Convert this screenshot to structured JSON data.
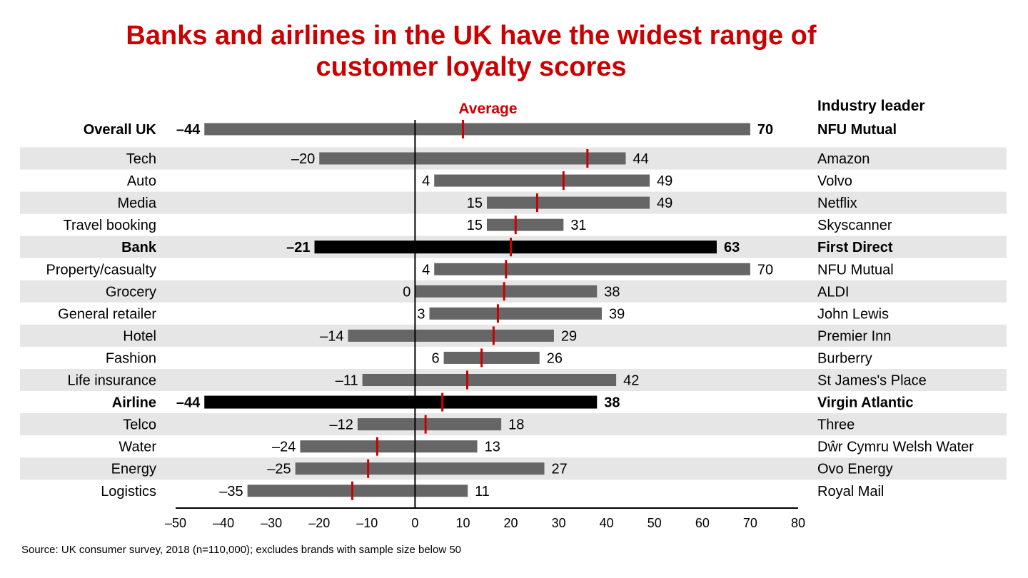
{
  "title_line1": "Banks and airlines in the UK have the widest range of",
  "title_line2": "customer loyalty scores",
  "source": "Source: UK consumer survey, 2018 (n=110,000); excludes brands with sample size below 50",
  "colors": {
    "title": "#cc0000",
    "bar": "#666666",
    "highlight_bar": "#000000",
    "average": "#cc0000",
    "row_band": "#e6e6e6"
  },
  "chart_data": {
    "type": "bar",
    "subtype": "floating-range",
    "title": "Banks and airlines in the UK have the widest range of customer loyalty scores",
    "xlabel": "",
    "ylabel": "",
    "xlim": [
      -50,
      80
    ],
    "x_ticks": [
      -50,
      -40,
      -30,
      -20,
      -10,
      0,
      10,
      20,
      30,
      40,
      50,
      60,
      70,
      80
    ],
    "x_tick_labels": [
      "–50",
      "–40",
      "–30",
      "–20",
      "–10",
      "0",
      "10",
      "20",
      "30",
      "40",
      "50",
      "60",
      "70",
      "80"
    ],
    "average_label": "Average",
    "leader_header": "Industry leader",
    "grid": false,
    "rows": [
      {
        "category": "Overall UK",
        "min": -44,
        "max": 70,
        "min_label": "–44",
        "max_label": "70",
        "average": 10,
        "leader": "NFU Mutual",
        "bold": true,
        "highlight": false,
        "band": false
      },
      {
        "category": "Tech",
        "min": -20,
        "max": 44,
        "min_label": "–20",
        "max_label": "44",
        "average": 36,
        "leader": "Amazon",
        "bold": false,
        "highlight": false,
        "band": true
      },
      {
        "category": "Auto",
        "min": 4,
        "max": 49,
        "min_label": "4",
        "max_label": "49",
        "average": 31,
        "leader": "Volvo",
        "bold": false,
        "highlight": false,
        "band": false
      },
      {
        "category": "Media",
        "min": 15,
        "max": 49,
        "min_label": "15",
        "max_label": "49",
        "average": 25.5,
        "leader": "Netflix",
        "bold": false,
        "highlight": false,
        "band": true
      },
      {
        "category": "Travel booking",
        "min": 15,
        "max": 31,
        "min_label": "15",
        "max_label": "31",
        "average": 21,
        "leader": "Skyscanner",
        "bold": false,
        "highlight": false,
        "band": false
      },
      {
        "category": "Bank",
        "min": -21,
        "max": 63,
        "min_label": "–21",
        "max_label": "63",
        "average": 20,
        "leader": "First Direct",
        "bold": true,
        "highlight": true,
        "band": true
      },
      {
        "category": "Property/casualty",
        "min": 4,
        "max": 70,
        "min_label": "4",
        "max_label": "70",
        "average": 19,
        "leader": "NFU Mutual",
        "bold": false,
        "highlight": false,
        "band": false
      },
      {
        "category": "Grocery",
        "min": 0,
        "max": 38,
        "min_label": "0",
        "max_label": "38",
        "average": 18.6,
        "leader": "ALDI",
        "bold": false,
        "highlight": false,
        "band": true
      },
      {
        "category": "General retailer",
        "min": 3,
        "max": 39,
        "min_label": "3",
        "max_label": "39",
        "average": 17.3,
        "leader": "John Lewis",
        "bold": false,
        "highlight": false,
        "band": false
      },
      {
        "category": "Hotel",
        "min": -14,
        "max": 29,
        "min_label": "–14",
        "max_label": "29",
        "average": 16.4,
        "leader": "Premier Inn",
        "bold": false,
        "highlight": false,
        "band": true
      },
      {
        "category": "Fashion",
        "min": 6,
        "max": 26,
        "min_label": "6",
        "max_label": "26",
        "average": 13.9,
        "leader": "Burberry",
        "bold": false,
        "highlight": false,
        "band": false
      },
      {
        "category": "Life insurance",
        "min": -11,
        "max": 42,
        "min_label": "–11",
        "max_label": "42",
        "average": 10.9,
        "leader": "St James's Place",
        "bold": false,
        "highlight": false,
        "band": true
      },
      {
        "category": "Airline",
        "min": -44,
        "max": 38,
        "min_label": "–44",
        "max_label": "38",
        "average": 5.7,
        "leader": "Virgin Atlantic",
        "bold": true,
        "highlight": true,
        "band": false
      },
      {
        "category": "Telco",
        "min": -12,
        "max": 18,
        "min_label": "–12",
        "max_label": "18",
        "average": 2.2,
        "leader": "Three",
        "bold": false,
        "highlight": false,
        "band": true
      },
      {
        "category": "Water",
        "min": -24,
        "max": 13,
        "min_label": "–24",
        "max_label": "13",
        "average": -7.9,
        "leader": "Dŵr Cymru Welsh Water",
        "bold": false,
        "highlight": false,
        "band": false
      },
      {
        "category": "Energy",
        "min": -25,
        "max": 27,
        "min_label": "–25",
        "max_label": "27",
        "average": -9.8,
        "leader": "Ovo Energy",
        "bold": false,
        "highlight": false,
        "band": true
      },
      {
        "category": "Logistics",
        "min": -35,
        "max": 11,
        "min_label": "–35",
        "max_label": "11",
        "average": -13.1,
        "leader": "Royal Mail",
        "bold": false,
        "highlight": false,
        "band": false
      }
    ]
  }
}
